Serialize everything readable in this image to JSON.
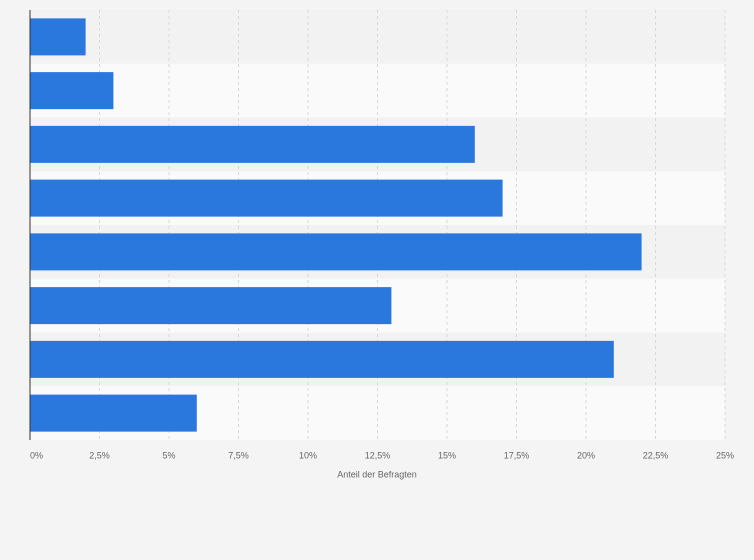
{
  "chart_data": {
    "type": "bar",
    "orientation": "horizontal",
    "x_axis_label": "Anteil der Befragten",
    "categories": [
      null,
      null,
      null,
      null,
      null,
      null,
      null,
      null
    ],
    "values": [
      2,
      3,
      16,
      17,
      22,
      13,
      21,
      6
    ],
    "color": "#2a77dd",
    "xlim": [
      0,
      25
    ],
    "xticks": [
      {
        "value": 0,
        "label": "0%"
      },
      {
        "value": 2.5,
        "label": "2,5%"
      },
      {
        "value": 5,
        "label": "5%"
      },
      {
        "value": 7.5,
        "label": "7,5%"
      },
      {
        "value": 10,
        "label": "10%"
      },
      {
        "value": 12.5,
        "label": "12,5%"
      },
      {
        "value": 15,
        "label": "15%"
      },
      {
        "value": 17.5,
        "label": "17,5%"
      },
      {
        "value": 20,
        "label": "20%"
      },
      {
        "value": 22.5,
        "label": "22,5%"
      },
      {
        "value": 25,
        "label": "25%"
      }
    ],
    "grid": true
  }
}
